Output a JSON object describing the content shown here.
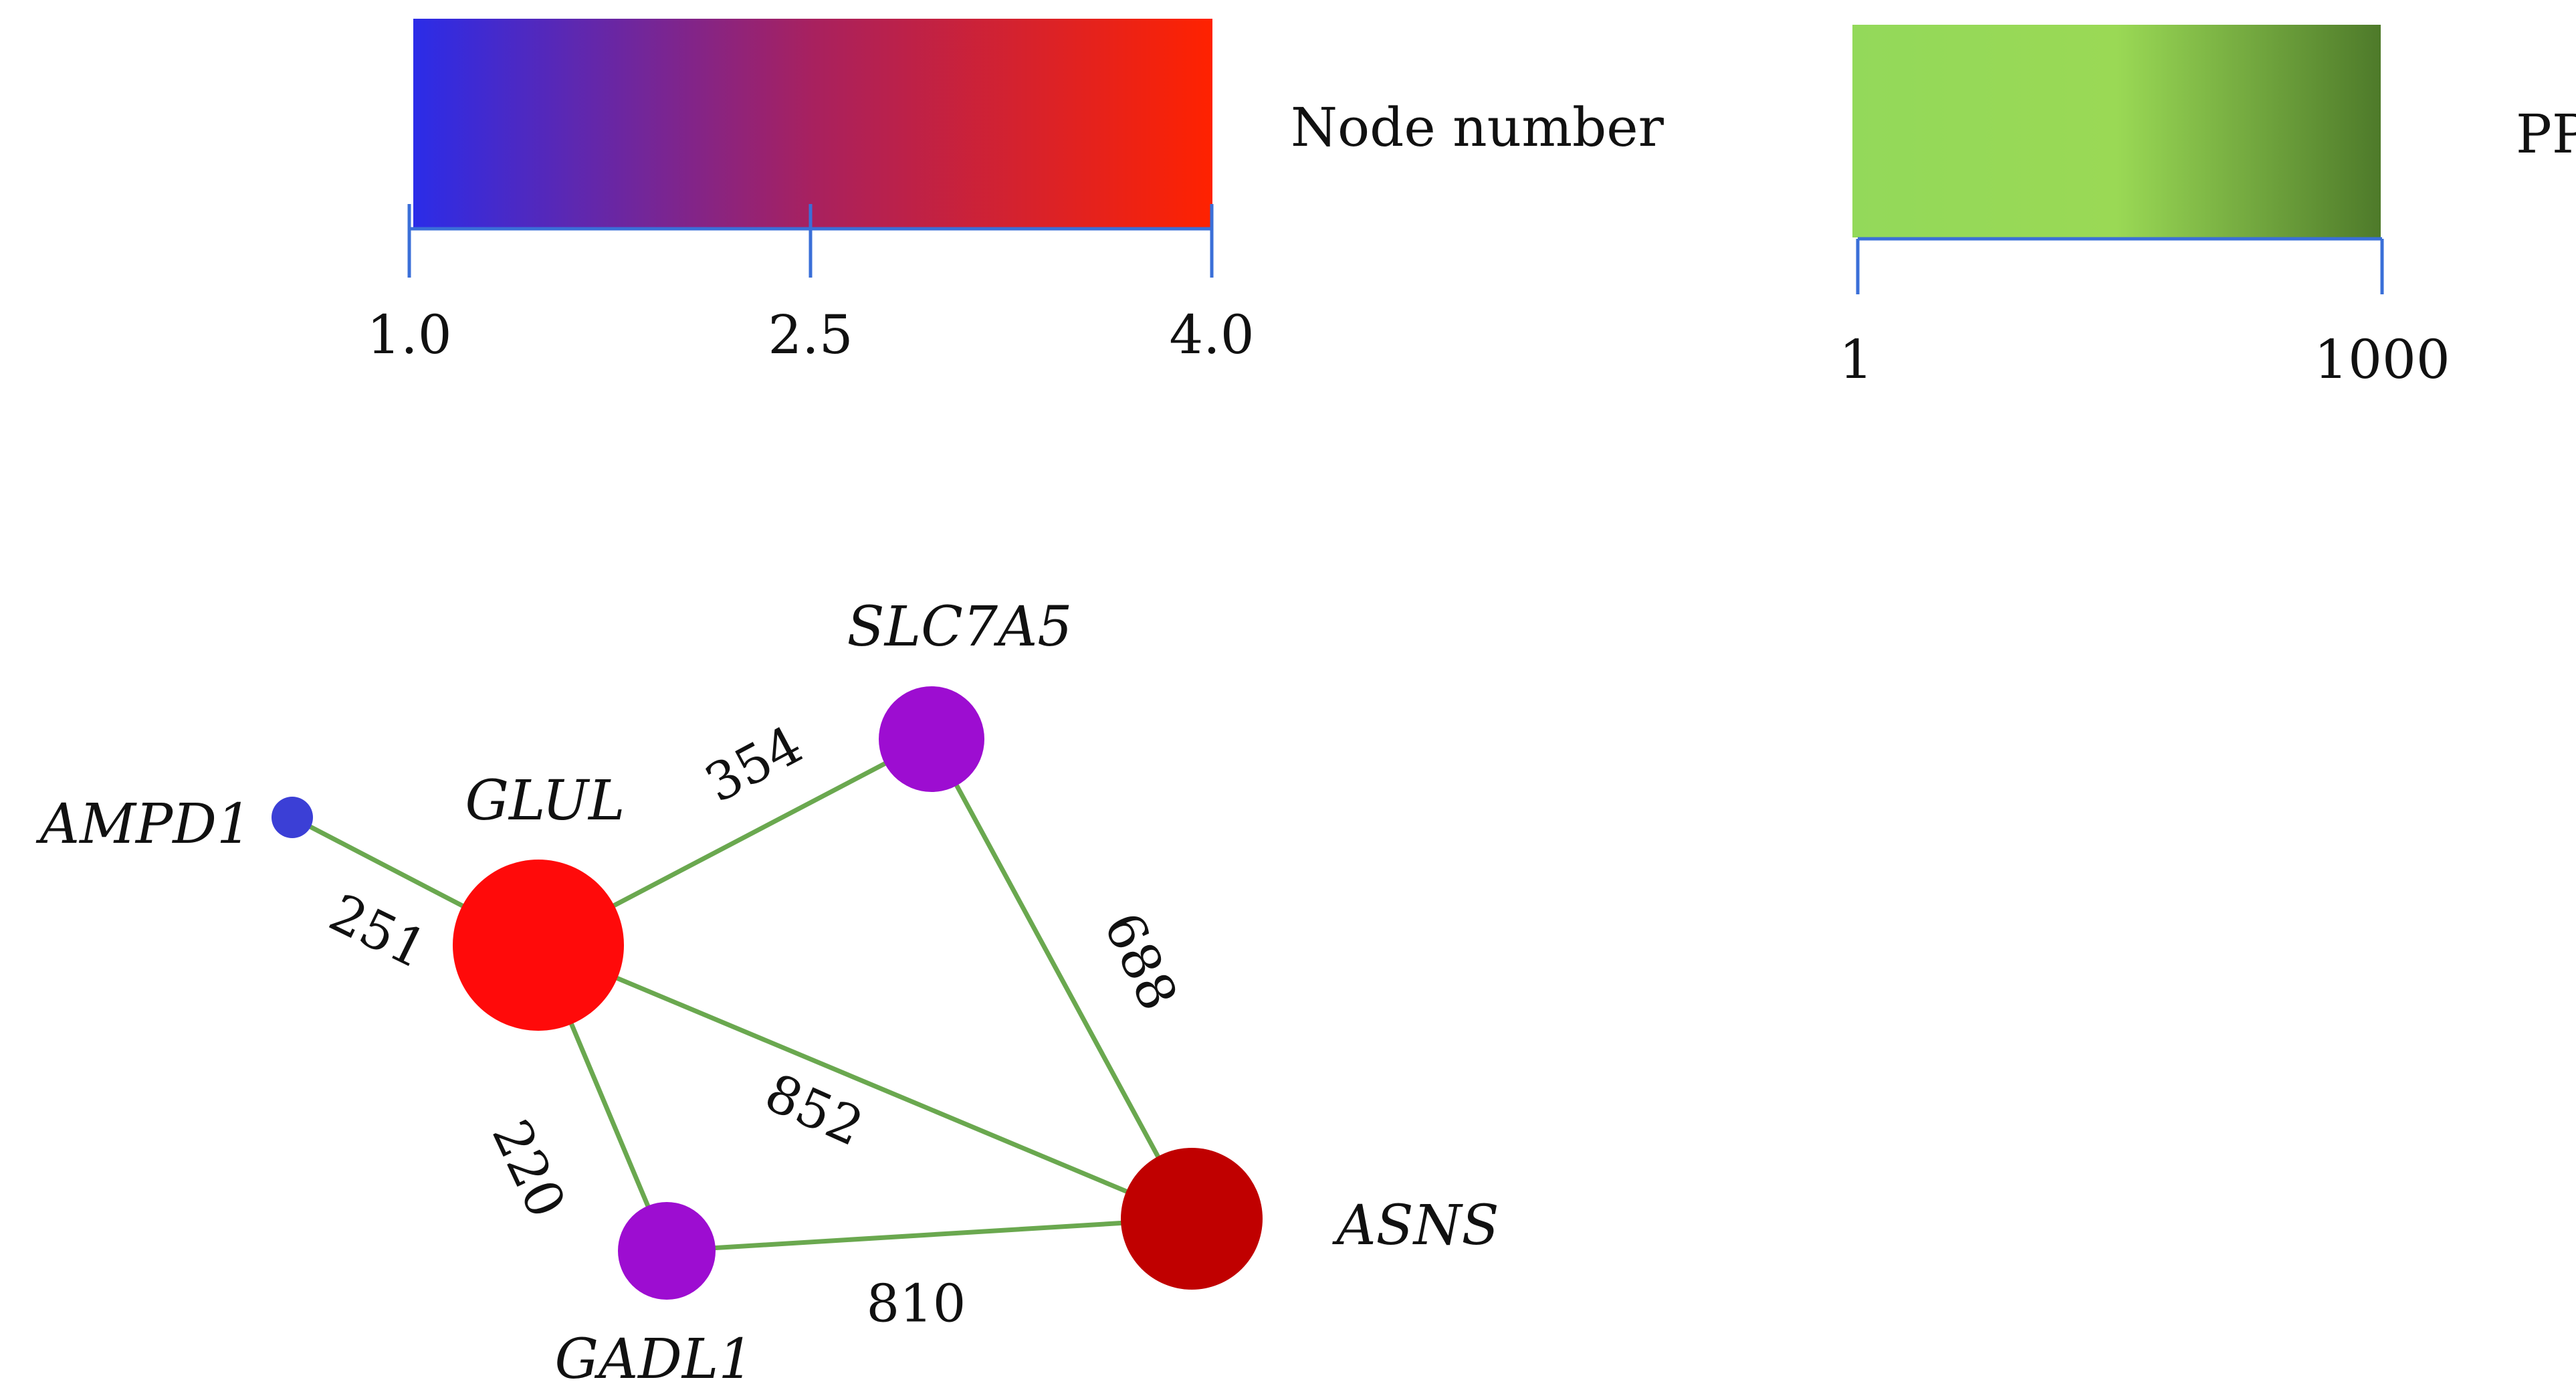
{
  "legends": {
    "node_number": {
      "title": "Node number",
      "colors": {
        "low": "#2b2ce8",
        "mid": "#a8215f",
        "high": "#ff2200"
      },
      "ticks": [
        {
          "value": 1.0,
          "label": "1.0"
        },
        {
          "value": 2.5,
          "label": "2.5"
        },
        {
          "value": 4.0,
          "label": "4.0"
        }
      ]
    },
    "ppi": {
      "title": "PPI",
      "colors": {
        "low": "#93d95a",
        "mid": "#9ad955",
        "high": "#4e7a2a"
      },
      "ticks": [
        {
          "value": 1,
          "label": "1"
        },
        {
          "value": 1000,
          "label": "1000"
        }
      ]
    }
  },
  "network": {
    "nodes": [
      {
        "id": "AMPD1",
        "label": "AMPD1",
        "color": "#3b3fd6"
      },
      {
        "id": "GLUL",
        "label": "GLUL",
        "color": "#ff0a0a"
      },
      {
        "id": "SLC7A5",
        "label": "SLC7A5",
        "color": "#9d0dd1"
      },
      {
        "id": "GADL1",
        "label": "GADL1",
        "color": "#9d0dd1"
      },
      {
        "id": "ASNS",
        "label": "ASNS",
        "color": "#c00000"
      }
    ],
    "edges": [
      {
        "source": "AMPD1",
        "target": "GLUL",
        "weight": "251"
      },
      {
        "source": "GLUL",
        "target": "SLC7A5",
        "weight": "354"
      },
      {
        "source": "SLC7A5",
        "target": "ASNS",
        "weight": "688"
      },
      {
        "source": "GLUL",
        "target": "ASNS",
        "weight": "852"
      },
      {
        "source": "GLUL",
        "target": "GADL1",
        "weight": "220"
      },
      {
        "source": "GADL1",
        "target": "ASNS",
        "weight": "810"
      }
    ],
    "edge_color": "#6aa84f"
  }
}
